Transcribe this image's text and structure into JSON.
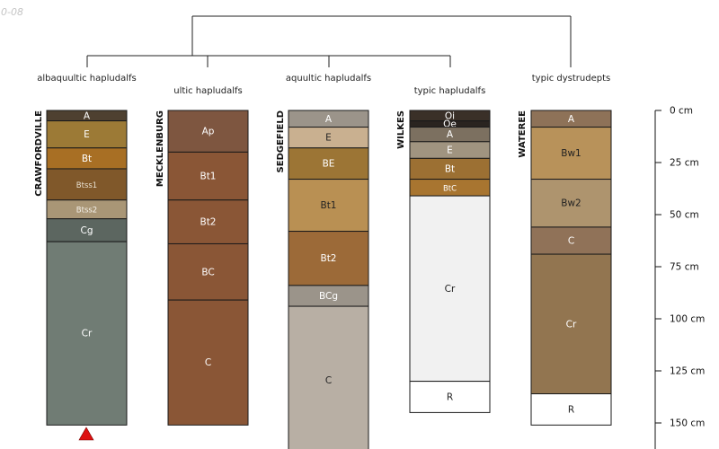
{
  "date_fragment": "0-08",
  "colors": {
    "dendrogram": "#222222",
    "horizon_border": "#1a1a1a",
    "marker": "#dd1111"
  },
  "axis": {
    "unit": "cm",
    "ticks": [
      0,
      25,
      50,
      75,
      100,
      125,
      150
    ],
    "tick_labels": [
      "0 cm",
      "25 cm",
      "50 cm",
      "75 cm",
      "100 cm",
      "125 cm",
      "150 cm"
    ]
  },
  "groups": [
    {
      "label": "albaquultic hapludalfs",
      "profiles": [
        0
      ]
    },
    {
      "label": "ultic hapludalfs",
      "profiles": [
        1
      ]
    },
    {
      "label": "aquultic hapludalfs",
      "profiles": [
        2
      ]
    },
    {
      "label": "typic hapludalfs",
      "profiles": [
        3
      ]
    },
    {
      "label": "typic dystrudepts",
      "profiles": [
        4
      ]
    }
  ],
  "profiles": [
    {
      "name": "CRAWFORDVILLE",
      "marker": "red-triangle",
      "horizons": [
        {
          "name": "A",
          "top": 0,
          "bottom": 5,
          "color": "#4e4030",
          "text": "#ffffff",
          "small": false
        },
        {
          "name": "E",
          "top": 5,
          "bottom": 18,
          "color": "#9c7a36",
          "text": "#ffffff",
          "small": false
        },
        {
          "name": "Bt",
          "top": 18,
          "bottom": 28,
          "color": "#a86f24",
          "text": "#ffffff",
          "small": false
        },
        {
          "name": "Btss1",
          "top": 28,
          "bottom": 43,
          "color": "#80582a",
          "text": "#e8e0d0",
          "small": true
        },
        {
          "name": "Btss2",
          "top": 43,
          "bottom": 52,
          "color": "#a99676",
          "text": "#f4f0e8",
          "small": true
        },
        {
          "name": "Cg",
          "top": 52,
          "bottom": 63,
          "color": "#5c6660",
          "text": "#ffffff",
          "small": false
        },
        {
          "name": "Cr",
          "top": 63,
          "bottom": 151,
          "color": "#707c74",
          "text": "#ffffff",
          "small": false
        }
      ]
    },
    {
      "name": "MECKLENBURG",
      "marker": "",
      "horizons": [
        {
          "name": "Ap",
          "top": 0,
          "bottom": 20,
          "color": "#7e5640",
          "text": "#ffffff",
          "small": false
        },
        {
          "name": "Bt1",
          "top": 20,
          "bottom": 43,
          "color": "#8a5636",
          "text": "#ffffff",
          "small": false
        },
        {
          "name": "Bt2",
          "top": 43,
          "bottom": 64,
          "color": "#8a5636",
          "text": "#ffffff",
          "small": false
        },
        {
          "name": "BC",
          "top": 64,
          "bottom": 91,
          "color": "#8a5636",
          "text": "#ffffff",
          "small": false
        },
        {
          "name": "C",
          "top": 91,
          "bottom": 151,
          "color": "#8a5636",
          "text": "#ffffff",
          "small": false
        }
      ]
    },
    {
      "name": "SEDGEFIELD",
      "marker": "",
      "horizons": [
        {
          "name": "A",
          "top": 0,
          "bottom": 8,
          "color": "#9b948a",
          "text": "#ffffff",
          "small": false
        },
        {
          "name": "E",
          "top": 8,
          "bottom": 18,
          "color": "#c9b090",
          "text": "#222222",
          "small": false
        },
        {
          "name": "BE",
          "top": 18,
          "bottom": 33,
          "color": "#9c7535",
          "text": "#ffffff",
          "small": false
        },
        {
          "name": "Bt1",
          "top": 33,
          "bottom": 58,
          "color": "#b99053",
          "text": "#222222",
          "small": false
        },
        {
          "name": "Bt2",
          "top": 58,
          "bottom": 84,
          "color": "#9c6a38",
          "text": "#ffffff",
          "small": false
        },
        {
          "name": "BCg",
          "top": 84,
          "bottom": 94,
          "color": "#9b948a",
          "text": "#ffffff",
          "small": false
        },
        {
          "name": "C",
          "top": 94,
          "bottom": 165,
          "color": "#b8afa4",
          "text": "#222222",
          "small": false
        }
      ]
    },
    {
      "name": "WILKES",
      "marker": "",
      "horizons": [
        {
          "name": "Oi",
          "top": 0,
          "bottom": 5,
          "color": "#3a3028",
          "text": "#ffffff",
          "small": false
        },
        {
          "name": "Oe",
          "top": 5,
          "bottom": 8,
          "color": "#2a2420",
          "text": "#ffffff",
          "small": false
        },
        {
          "name": "A",
          "top": 8,
          "bottom": 15,
          "color": "#7c7060",
          "text": "#ffffff",
          "small": false
        },
        {
          "name": "E",
          "top": 15,
          "bottom": 23,
          "color": "#a09480",
          "text": "#ffffff",
          "small": false
        },
        {
          "name": "Bt",
          "top": 23,
          "bottom": 33,
          "color": "#9c7033",
          "text": "#ffffff",
          "small": false
        },
        {
          "name": "BtC",
          "top": 33,
          "bottom": 41,
          "color": "#a87530",
          "text": "#ffffff",
          "small": true
        },
        {
          "name": "Cr",
          "top": 41,
          "bottom": 130,
          "color": "#f1f1f1",
          "text": "#222222",
          "small": false
        },
        {
          "name": "R",
          "top": 130,
          "bottom": 145,
          "color": "#ffffff",
          "text": "#222222",
          "small": false
        }
      ]
    },
    {
      "name": "WATEREE",
      "marker": "",
      "horizons": [
        {
          "name": "A",
          "top": 0,
          "bottom": 8,
          "color": "#8e7258",
          "text": "#ffffff",
          "small": false
        },
        {
          "name": "Bw1",
          "top": 8,
          "bottom": 33,
          "color": "#b8925a",
          "text": "#222222",
          "small": false
        },
        {
          "name": "Bw2",
          "top": 33,
          "bottom": 56,
          "color": "#ae946e",
          "text": "#222222",
          "small": false
        },
        {
          "name": "C",
          "top": 56,
          "bottom": 69,
          "color": "#907258",
          "text": "#ffffff",
          "small": false
        },
        {
          "name": "Cr",
          "top": 69,
          "bottom": 136,
          "color": "#927550",
          "text": "#ffffff",
          "small": false
        },
        {
          "name": "R",
          "top": 136,
          "bottom": 151,
          "color": "#ffffff",
          "text": "#222222",
          "small": false
        }
      ]
    }
  ]
}
